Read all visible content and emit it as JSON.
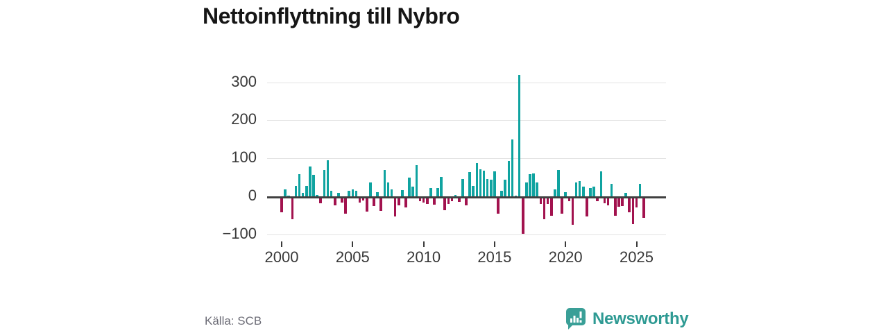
{
  "title": "Nettoinflyttning till Nybro",
  "source": "Källa: SCB",
  "branding": {
    "name": "Newsworthy",
    "logo_color": "#3a9f97",
    "text_color": "#2e9a93"
  },
  "chart_data": {
    "type": "bar",
    "title": "Nettoinflyttning till Nybro",
    "xlabel": "",
    "ylabel": "",
    "grid": true,
    "legend": false,
    "ylim": [
      -110,
      340
    ],
    "yticks": [
      300,
      200,
      100,
      0,
      -100
    ],
    "ytick_labels": [
      "300",
      "200",
      "100",
      "0",
      "−100"
    ],
    "xticks": [
      "2000",
      "2005",
      "2010",
      "2015",
      "2020",
      "2025"
    ],
    "positive_color": "#0fa3a0",
    "negative_color": "#a2124e",
    "quarters": [
      "2000Q1",
      "2000Q2",
      "2000Q3",
      "2000Q4",
      "2001Q1",
      "2001Q2",
      "2001Q3",
      "2001Q4",
      "2002Q1",
      "2002Q2",
      "2002Q3",
      "2002Q4",
      "2003Q1",
      "2003Q2",
      "2003Q3",
      "2003Q4",
      "2004Q1",
      "2004Q2",
      "2004Q3",
      "2004Q4",
      "2005Q1",
      "2005Q2",
      "2005Q3",
      "2005Q4",
      "2006Q1",
      "2006Q2",
      "2006Q3",
      "2006Q4",
      "2007Q1",
      "2007Q2",
      "2007Q3",
      "2007Q4",
      "2008Q1",
      "2008Q2",
      "2008Q3",
      "2008Q4",
      "2009Q1",
      "2009Q2",
      "2009Q3",
      "2009Q4",
      "2010Q1",
      "2010Q2",
      "2010Q3",
      "2010Q4",
      "2011Q1",
      "2011Q2",
      "2011Q3",
      "2011Q4",
      "2012Q1",
      "2012Q2",
      "2012Q3",
      "2012Q4",
      "2013Q1",
      "2013Q2",
      "2013Q3",
      "2013Q4",
      "2014Q1",
      "2014Q2",
      "2014Q3",
      "2014Q4",
      "2015Q1",
      "2015Q2",
      "2015Q3",
      "2015Q4",
      "2016Q1",
      "2016Q2",
      "2016Q3",
      "2016Q4",
      "2017Q1",
      "2017Q2",
      "2017Q3",
      "2017Q4",
      "2018Q1",
      "2018Q2",
      "2018Q3",
      "2018Q4",
      "2019Q1",
      "2019Q2",
      "2019Q3",
      "2019Q4",
      "2020Q1",
      "2020Q2",
      "2020Q3",
      "2020Q4",
      "2021Q1",
      "2021Q2",
      "2021Q3",
      "2021Q4",
      "2022Q1",
      "2022Q2",
      "2022Q3",
      "2022Q4",
      "2023Q1",
      "2023Q2",
      "2023Q3",
      "2023Q4",
      "2024Q1",
      "2024Q2",
      "2024Q3",
      "2024Q4",
      "2025Q1",
      "2025Q2",
      "2025Q3"
    ],
    "values": [
      -38,
      19,
      2,
      -57,
      28,
      59,
      10,
      27,
      79,
      56,
      3,
      -15,
      70,
      95,
      14,
      -20,
      9,
      -12,
      -42,
      14,
      18,
      15,
      -12,
      -8,
      -36,
      36,
      -21,
      11,
      -35,
      69,
      36,
      19,
      -50,
      -20,
      16,
      -26,
      49,
      26,
      83,
      -9,
      -12,
      -17,
      22,
      -18,
      21,
      52,
      -33,
      -17,
      -9,
      3,
      -11,
      45,
      -20,
      64,
      28,
      88,
      71,
      67,
      45,
      43,
      66,
      -42,
      15,
      43,
      93,
      150,
      1,
      320,
      -95,
      37,
      59,
      61,
      36,
      -17,
      -57,
      -17,
      -48,
      18,
      69,
      -42,
      11,
      -9,
      -72,
      36,
      40,
      25,
      -50,
      21,
      25,
      -10,
      65,
      -14,
      -20,
      33,
      -48,
      -24,
      -21,
      9,
      -39,
      -69,
      -26,
      32,
      -53
    ]
  }
}
